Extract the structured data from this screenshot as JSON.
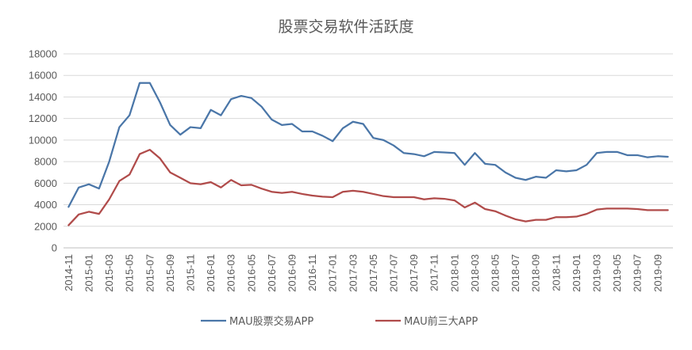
{
  "chart_data": {
    "type": "line",
    "title": "股票交易软件活跃度",
    "xlabel": "",
    "ylabel": "",
    "ylim": [
      0,
      18000
    ],
    "yticks": [
      0,
      2000,
      4000,
      6000,
      8000,
      10000,
      12000,
      14000,
      16000,
      18000
    ],
    "grid": "horizontal",
    "legend_position": "bottom",
    "x": [
      "2014-11",
      "2014-12",
      "2015-01",
      "2015-02",
      "2015-03",
      "2015-04",
      "2015-05",
      "2015-06",
      "2015-07",
      "2015-08",
      "2015-09",
      "2015-10",
      "2015-11",
      "2015-12",
      "2016-01",
      "2016-02",
      "2016-03",
      "2016-04",
      "2016-05",
      "2016-06",
      "2016-07",
      "2016-08",
      "2016-09",
      "2016-10",
      "2016-11",
      "2016-12",
      "2017-01",
      "2017-02",
      "2017-03",
      "2017-04",
      "2017-05",
      "2017-06",
      "2017-07",
      "2017-08",
      "2017-09",
      "2017-10",
      "2017-11",
      "2017-12",
      "2018-01",
      "2018-02",
      "2018-03",
      "2018-04",
      "2018-05",
      "2018-06",
      "2018-07",
      "2018-08",
      "2018-09",
      "2018-10",
      "2018-11",
      "2018-12",
      "2019-01",
      "2019-02",
      "2019-03",
      "2019-04",
      "2019-05",
      "2019-06",
      "2019-07",
      "2019-08",
      "2019-09",
      "2019-10"
    ],
    "xtick_labels": [
      "2014-11",
      "2015-01",
      "2015-03",
      "2015-05",
      "2015-07",
      "2015-09",
      "2015-11",
      "2016-01",
      "2016-03",
      "2016-05",
      "2016-07",
      "2016-09",
      "2016-11",
      "2017-01",
      "2017-03",
      "2017-05",
      "2017-07",
      "2017-09",
      "2017-11",
      "2018-01",
      "2018-03",
      "2018-05",
      "2018-07",
      "2018-09",
      "2018-11",
      "2019-01",
      "2019-03",
      "2019-05",
      "2019-07",
      "2019-09"
    ],
    "series": [
      {
        "name": "MAU股票交易APP",
        "color": "#4a76a8",
        "values": [
          3800,
          5600,
          5900,
          5500,
          8000,
          11200,
          12300,
          15300,
          15300,
          13500,
          11400,
          10500,
          11200,
          11100,
          12800,
          12300,
          13800,
          14100,
          13900,
          13100,
          11900,
          11400,
          11500,
          10800,
          10800,
          10400,
          9900,
          11100,
          11700,
          11500,
          10200,
          10000,
          9500,
          8800,
          8700,
          8500,
          8900,
          8850,
          8800,
          7700,
          8800,
          7800,
          7700,
          7000,
          6500,
          6300,
          6600,
          6500,
          7200,
          7100,
          7200,
          7700,
          8800,
          8900,
          8900,
          8600,
          8600,
          8400,
          8500,
          8450
        ]
      },
      {
        "name": "MAU前三大APP",
        "color": "#b04b4a",
        "values": [
          2100,
          3100,
          3350,
          3150,
          4500,
          6200,
          6800,
          8700,
          9100,
          8300,
          7000,
          6500,
          6000,
          5900,
          6100,
          5600,
          6300,
          5800,
          5850,
          5500,
          5200,
          5100,
          5200,
          5000,
          4850,
          4750,
          4700,
          5200,
          5300,
          5200,
          5000,
          4800,
          4700,
          4700,
          4700,
          4500,
          4600,
          4550,
          4400,
          3750,
          4200,
          3600,
          3400,
          3000,
          2650,
          2450,
          2600,
          2600,
          2850,
          2850,
          2900,
          3150,
          3550,
          3650,
          3650,
          3650,
          3600,
          3500,
          3500,
          3500
        ]
      }
    ]
  }
}
